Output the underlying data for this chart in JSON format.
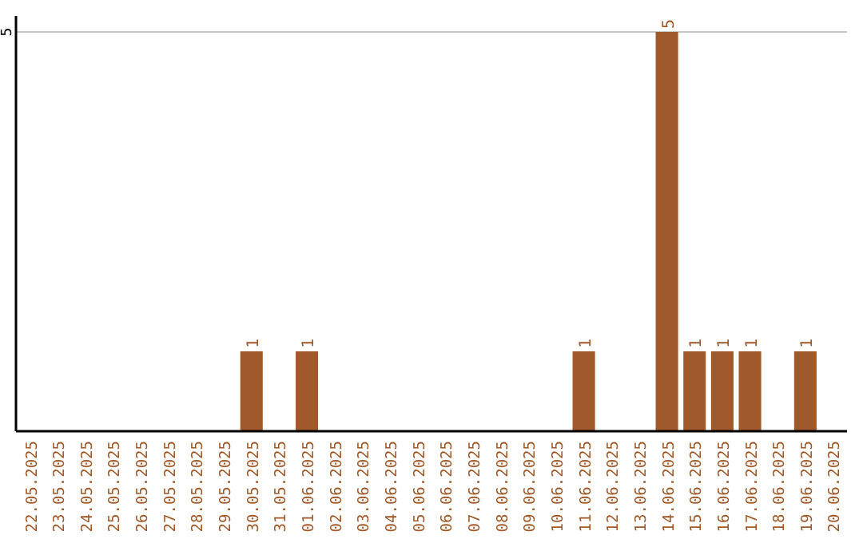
{
  "chart_data": {
    "type": "bar",
    "categories": [
      "22.05.2025",
      "23.05.2025",
      "24.05.2025",
      "25.05.2025",
      "26.05.2025",
      "27.05.2025",
      "28.05.2025",
      "29.05.2025",
      "30.05.2025",
      "31.05.2025",
      "01.06.2025",
      "02.06.2025",
      "03.06.2025",
      "04.06.2025",
      "05.06.2025",
      "06.06.2025",
      "07.06.2025",
      "08.06.2025",
      "09.06.2025",
      "10.06.2025",
      "11.06.2025",
      "12.06.2025",
      "13.06.2025",
      "14.06.2025",
      "15.06.2025",
      "16.06.2025",
      "17.06.2025",
      "18.06.2025",
      "19.06.2025",
      "20.06.2025"
    ],
    "values": [
      0,
      0,
      0,
      0,
      0,
      0,
      0,
      0,
      1,
      0,
      1,
      0,
      0,
      0,
      0,
      0,
      0,
      0,
      0,
      0,
      1,
      0,
      0,
      5,
      1,
      1,
      1,
      0,
      1,
      0
    ],
    "value_labels": [
      null,
      null,
      null,
      null,
      null,
      null,
      null,
      null,
      "1",
      null,
      "1",
      null,
      null,
      null,
      null,
      null,
      null,
      null,
      null,
      null,
      "1",
      null,
      null,
      "5",
      "1",
      "1",
      "1",
      null,
      "1",
      null
    ],
    "color": "#a0592a",
    "ylim": [
      0,
      5.2
    ],
    "yticks": [
      5
    ],
    "grid": "y"
  }
}
